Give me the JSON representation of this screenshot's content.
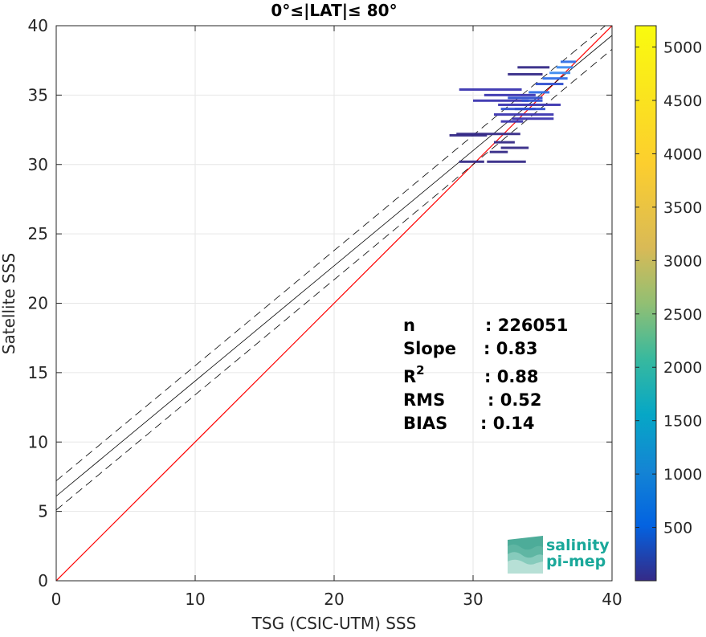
{
  "chart_data": {
    "type": "scatter",
    "title": "0°≤|LAT|≤ 80°",
    "xlabel": "TSG (CSIC-UTM) SSS",
    "ylabel": "Satellite SSS",
    "xlim": [
      0,
      40
    ],
    "ylim": [
      0,
      40
    ],
    "xticks": [
      0,
      10,
      20,
      30,
      40
    ],
    "yticks": [
      0,
      5,
      10,
      15,
      20,
      25,
      30,
      35,
      40
    ],
    "grid": true,
    "one_to_one_line": {
      "color": "#ff0000",
      "x": [
        0,
        40
      ],
      "y": [
        0,
        40
      ]
    },
    "regression_line": {
      "slope": 0.83,
      "intercept": 6.1,
      "color": "#000000"
    },
    "regression_bounds": {
      "offsets": [
        1.1,
        -1.0
      ],
      "style": "dashed",
      "color": "#000000"
    },
    "stats": [
      {
        "label": "n",
        "value": ": 226051"
      },
      {
        "label": "Slope",
        "value": ": 0.83"
      },
      {
        "label": "R",
        "sup": "2",
        "value": ": 0.88"
      },
      {
        "label": "RMS",
        "value": ": 0.52"
      },
      {
        "label": "BIAS",
        "value": ": 0.14"
      }
    ],
    "colorbar": {
      "min": 0,
      "max": 5200,
      "ticks": [
        500,
        1000,
        1500,
        2000,
        2500,
        3000,
        3500,
        4000,
        4500,
        5000
      ],
      "colormap": "parula"
    },
    "density_bins": [
      {
        "x0": 28.8,
        "x1": 33.4,
        "y": 32.2,
        "density": 300
      },
      {
        "x0": 28.3,
        "x1": 31.0,
        "y": 32.1,
        "density": 250
      },
      {
        "x0": 29.0,
        "x1": 30.8,
        "y": 30.2,
        "density": 200
      },
      {
        "x0": 31.0,
        "x1": 33.8,
        "y": 30.2,
        "density": 250
      },
      {
        "x0": 31.5,
        "x1": 35.8,
        "y": 33.6,
        "density": 400
      },
      {
        "x0": 32.0,
        "x1": 35.2,
        "y": 34.0,
        "density": 500
      },
      {
        "x0": 31.8,
        "x1": 36.3,
        "y": 34.3,
        "density": 450
      },
      {
        "x0": 30.0,
        "x1": 34.0,
        "y": 34.6,
        "density": 400
      },
      {
        "x0": 30.8,
        "x1": 34.5,
        "y": 35.0,
        "density": 400
      },
      {
        "x0": 29.0,
        "x1": 33.5,
        "y": 35.4,
        "density": 350
      },
      {
        "x0": 32.5,
        "x1": 35.0,
        "y": 34.8,
        "density": 500
      },
      {
        "x0": 32.0,
        "x1": 33.6,
        "y": 33.1,
        "density": 350
      },
      {
        "x0": 32.8,
        "x1": 35.8,
        "y": 33.3,
        "density": 450
      },
      {
        "x0": 31.5,
        "x1": 33.0,
        "y": 31.6,
        "density": 300
      },
      {
        "x0": 32.0,
        "x1": 34.0,
        "y": 31.2,
        "density": 300
      },
      {
        "x0": 31.2,
        "x1": 32.5,
        "y": 30.9,
        "density": 250
      },
      {
        "x0": 32.5,
        "x1": 35.0,
        "y": 36.5,
        "density": 300
      },
      {
        "x0": 33.2,
        "x1": 35.5,
        "y": 37.0,
        "density": 300
      },
      {
        "x0": 34.5,
        "x1": 36.5,
        "y": 35.8,
        "density": 600
      },
      {
        "x0": 35.0,
        "x1": 36.8,
        "y": 36.2,
        "density": 800
      },
      {
        "x0": 35.5,
        "x1": 37.0,
        "y": 36.6,
        "density": 900
      },
      {
        "x0": 36.0,
        "x1": 37.2,
        "y": 37.0,
        "density": 1000
      },
      {
        "x0": 36.3,
        "x1": 37.4,
        "y": 37.4,
        "density": 700
      },
      {
        "x0": 34.0,
        "x1": 35.5,
        "y": 35.2,
        "density": 700
      },
      {
        "x0": 33.5,
        "x1": 35.0,
        "y": 34.6,
        "density": 600
      },
      {
        "x0": 33.0,
        "x1": 34.5,
        "y": 34.0,
        "density": 550
      }
    ]
  },
  "logo": {
    "line1": "salinity",
    "line2": "pi-mep",
    "color": "#1aa89a"
  }
}
